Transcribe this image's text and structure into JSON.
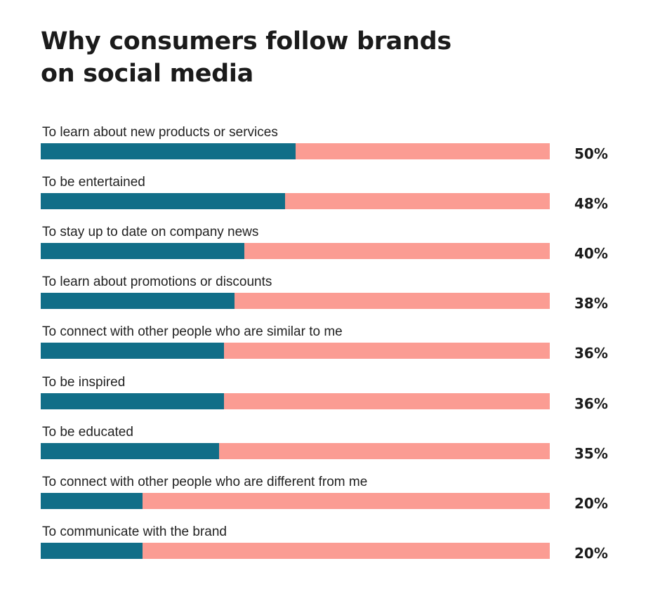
{
  "chart_data": {
    "type": "bar",
    "title_lines": [
      "Why consumers follow brands",
      "on social media"
    ],
    "categories": [
      "To learn about new products or services",
      "To be entertained",
      "To stay up to date on company news",
      "To learn about promotions or discounts",
      "To connect with other people who are similar to me",
      "To be inspired",
      "To be educated",
      "To connect with other people who are different from me",
      "To communicate with the brand"
    ],
    "values": [
      50,
      48,
      40,
      38,
      36,
      36,
      35,
      20,
      20
    ],
    "value_labels": [
      "50%",
      "48%",
      "40%",
      "38%",
      "36%",
      "36%",
      "35%",
      "20%",
      "20%"
    ],
    "orientation": "horizontal",
    "xlim": [
      0,
      100
    ],
    "grid": false,
    "colors": {
      "fill": "#116e88",
      "track": "#fb9c93",
      "text": "#1b1b1b"
    }
  }
}
